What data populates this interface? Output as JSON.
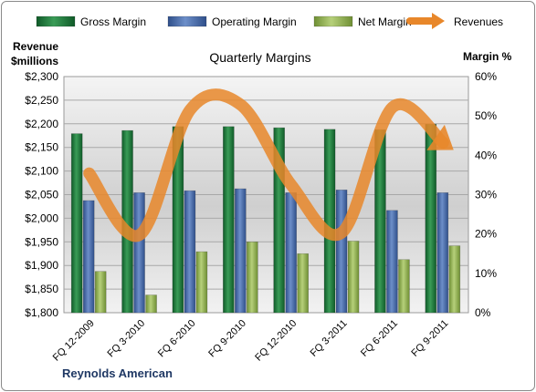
{
  "chart_data": {
    "type": "bar",
    "title": "Quarterly Margins",
    "company": "Reynolds American",
    "left_axis_label": [
      "Revenue",
      "$millions"
    ],
    "right_axis_label": "Margin %",
    "categories": [
      "FQ 12-2009",
      "FQ 3-2010",
      "FQ 6-2010",
      "FQ 9-2010",
      "FQ 12-2010",
      "FQ 3-2011",
      "FQ 6-2011",
      "FQ 9-2011"
    ],
    "series": [
      {
        "name": "Gross Margin",
        "axis": "right",
        "type": "bar",
        "color": "#1e7a3c",
        "values": [
          45.5,
          46.3,
          47.3,
          47.3,
          47.0,
          46.6,
          46.5,
          47.9
        ]
      },
      {
        "name": "Operating Margin",
        "axis": "right",
        "type": "bar",
        "color": "#4a6fb0",
        "values": [
          28.5,
          30.5,
          31.0,
          31.5,
          30.5,
          31.2,
          26.0,
          30.5
        ]
      },
      {
        "name": "Net Margin",
        "axis": "right",
        "type": "bar",
        "color": "#9aba59",
        "values": [
          10.5,
          4.5,
          15.5,
          18.0,
          15.0,
          18.2,
          13.5,
          17.0
        ]
      },
      {
        "name": "Revenues",
        "axis": "left",
        "type": "line",
        "color": "#e8872a",
        "values": [
          2095,
          1965,
          2230,
          2240,
          2070,
          1970,
          2235,
          2160
        ]
      }
    ],
    "left_axis": {
      "min": 1800,
      "max": 2300,
      "step": 50,
      "tick_labels": [
        "$1,800",
        "$1,850",
        "$1,900",
        "$1,950",
        "$2,000",
        "$2,050",
        "$2,100",
        "$2,150",
        "$2,200",
        "$2,250",
        "$2,300"
      ]
    },
    "right_axis": {
      "min": 0,
      "max": 60,
      "step": 10,
      "tick_labels": [
        "0%",
        "10%",
        "20%",
        "30%",
        "40%",
        "50%",
        "60%"
      ]
    },
    "legend_position": "top",
    "grid": true
  }
}
